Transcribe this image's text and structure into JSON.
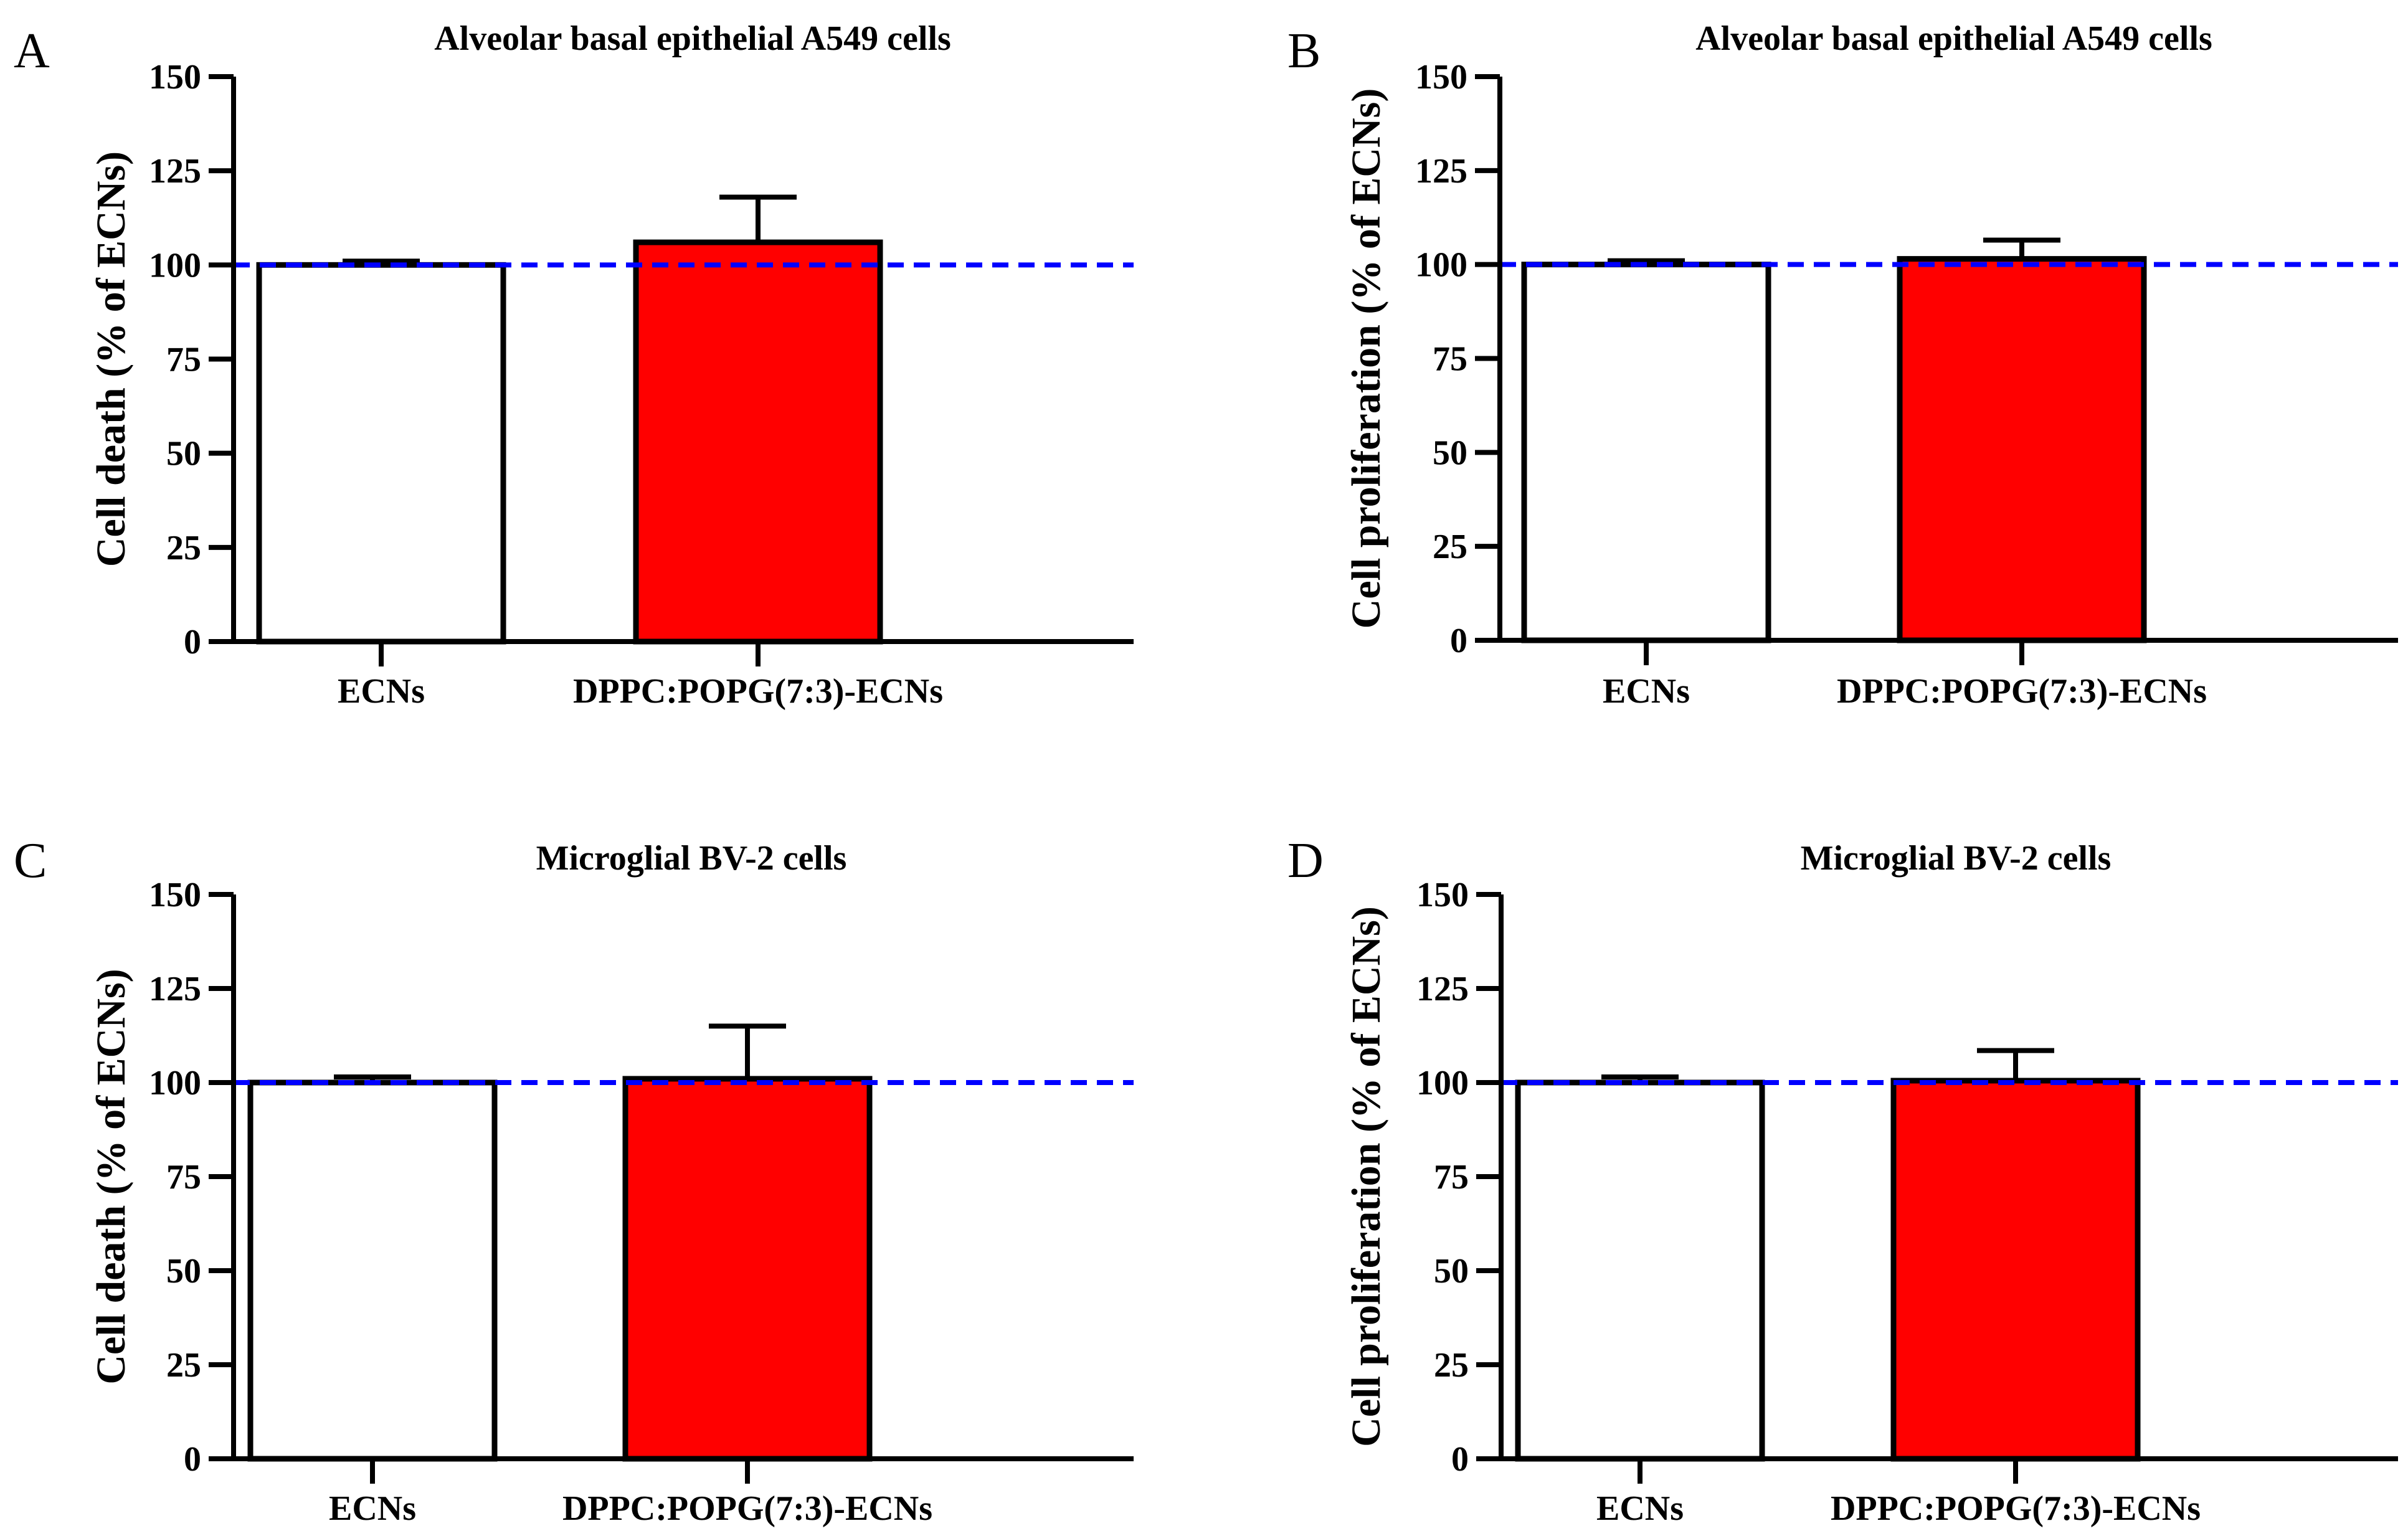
{
  "chart_data": [
    {
      "panel": "A",
      "type": "bar",
      "title": "Alveolar basal epithelial A549 cells",
      "ylabel": "Cell death (% of ECNs)",
      "xlabel": "",
      "categories": [
        "ECNs",
        "DPPC:POPG(7:3)-ECNs"
      ],
      "values": [
        100,
        106
      ],
      "errors": [
        1,
        12
      ],
      "bar_colors": [
        "#ffffff",
        "#ff0000"
      ],
      "reference_line": 100,
      "reference_color": "#0000ff",
      "ylim": [
        0,
        150
      ],
      "yticks": [
        "0",
        "25",
        "50",
        "75",
        "100",
        "125",
        "150"
      ],
      "grid": false
    },
    {
      "panel": "B",
      "type": "bar",
      "title": "Alveolar basal epithelial A549 cells",
      "ylabel": "Cell proliferation (% of ECNs)",
      "xlabel": "",
      "categories": [
        "ECNs",
        "DPPC:POPG(7:3)-ECNs"
      ],
      "values": [
        100,
        101.5
      ],
      "errors": [
        1,
        5
      ],
      "bar_colors": [
        "#ffffff",
        "#ff0000"
      ],
      "reference_line": 100,
      "reference_color": "#0000ff",
      "ylim": [
        0,
        150
      ],
      "yticks": [
        "0",
        "25",
        "50",
        "75",
        "100",
        "125",
        "150"
      ],
      "grid": false
    },
    {
      "panel": "C",
      "type": "bar",
      "title": "Microglial BV-2 cells",
      "ylabel": "Cell death (% of ECNs)",
      "xlabel": "",
      "categories": [
        "ECNs",
        "DPPC:POPG(7:3)-ECNs"
      ],
      "values": [
        100,
        101
      ],
      "errors": [
        1.5,
        14
      ],
      "bar_colors": [
        "#ffffff",
        "#ff0000"
      ],
      "reference_line": 100,
      "reference_color": "#0000ff",
      "ylim": [
        0,
        150
      ],
      "yticks": [
        "0",
        "25",
        "50",
        "75",
        "100",
        "125",
        "150"
      ],
      "grid": false
    },
    {
      "panel": "D",
      "type": "bar",
      "title": "Microglial BV-2 cells",
      "ylabel": "Cell proliferation (% of ECNs)",
      "xlabel": "",
      "categories": [
        "ECNs",
        "DPPC:POPG(7:3)-ECNs"
      ],
      "values": [
        100,
        100.5
      ],
      "errors": [
        1.5,
        8
      ],
      "bar_colors": [
        "#ffffff",
        "#ff0000"
      ],
      "reference_line": 100,
      "reference_color": "#0000ff",
      "ylim": [
        0,
        150
      ],
      "yticks": [
        "0",
        "25",
        "50",
        "75",
        "100",
        "125",
        "150"
      ],
      "grid": false
    }
  ]
}
